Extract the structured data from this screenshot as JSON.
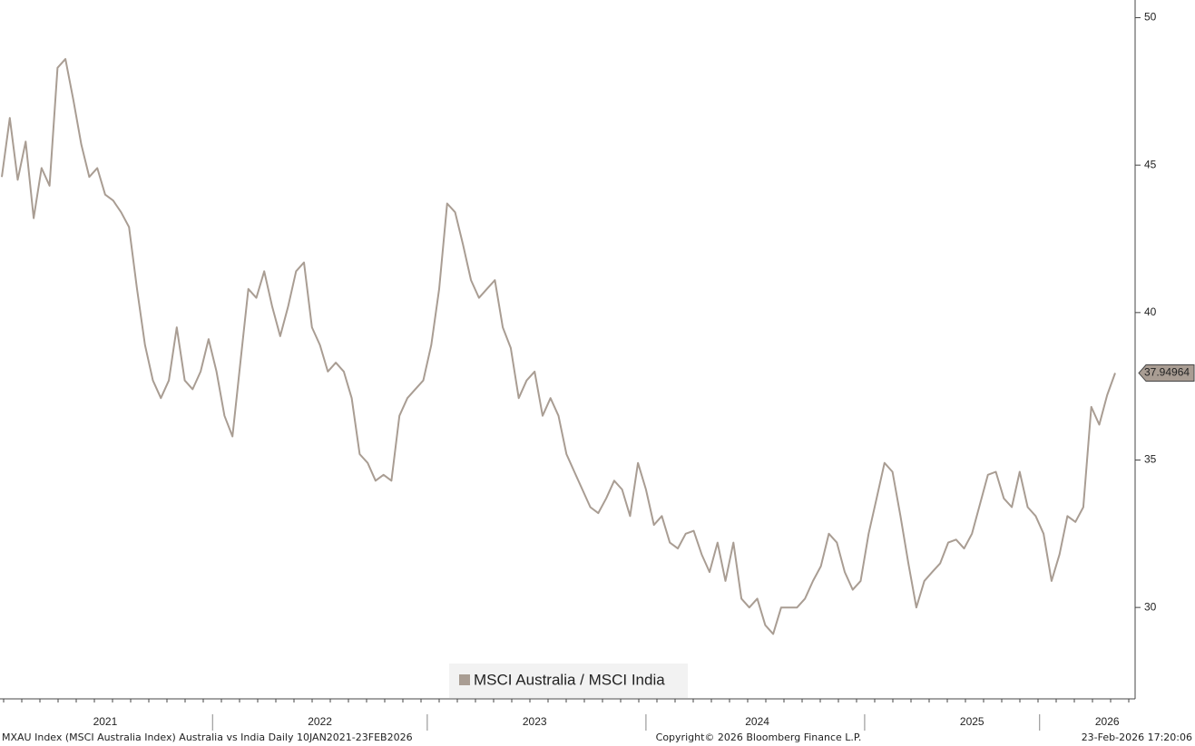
{
  "chart_data": {
    "type": "line",
    "legend": "MSCI Australia / MSCI India",
    "footer_left": "MXAU Index (MSCI Australia Index) Australia vs India Daily 10JAN2021-23FEB2026",
    "footer_center": "Copyright© 2026 Bloomberg Finance L.P.",
    "footer_right": "23-Feb-2026 17:20:06",
    "categories": [
      null,
      null,
      null,
      null,
      null,
      null,
      null,
      null,
      null,
      null,
      null,
      null,
      null,
      "2021",
      null,
      null,
      null,
      null,
      null,
      null,
      null,
      null,
      null,
      null,
      null,
      null,
      null,
      null,
      null,
      null,
      null,
      null,
      null,
      null,
      null,
      null,
      null,
      null,
      null,
      null,
      "2022",
      null,
      null,
      null,
      null,
      null,
      null,
      null,
      null,
      null,
      null,
      null,
      null,
      null,
      null,
      null,
      null,
      null,
      null,
      null,
      null,
      null,
      null,
      null,
      null,
      null,
      null,
      "2023",
      null,
      null,
      null,
      null,
      null,
      null,
      null,
      null,
      null,
      null,
      null,
      null,
      null,
      null,
      null,
      null,
      null,
      null,
      null,
      null,
      null,
      null,
      null,
      null,
      null,
      null,
      null,
      "2024",
      null,
      null,
      null,
      null,
      null,
      null,
      null,
      null,
      null,
      null,
      null,
      null,
      null,
      null,
      null,
      null,
      null,
      null,
      null,
      null,
      null,
      null,
      null,
      null,
      null,
      null,
      "2025",
      null,
      null,
      null,
      null,
      null,
      null,
      null,
      null,
      null,
      null,
      null,
      null,
      null,
      null,
      null,
      null,
      "2026",
      null
    ],
    "series": [
      {
        "name": "MSCI Australia / MSCI India",
        "color": "#a99d93",
        "values": [
          44.6,
          46.6,
          44.5,
          45.8,
          43.2,
          44.9,
          44.3,
          48.3,
          48.6,
          47.2,
          45.7,
          44.6,
          44.9,
          44.0,
          43.8,
          43.4,
          42.9,
          40.8,
          38.9,
          37.7,
          37.1,
          37.7,
          39.5,
          37.7,
          37.4,
          38.0,
          39.1,
          38.0,
          36.5,
          35.8,
          38.3,
          40.8,
          40.5,
          41.4,
          40.2,
          39.2,
          40.2,
          41.4,
          41.7,
          39.5,
          38.9,
          38.0,
          38.3,
          38.0,
          37.1,
          35.2,
          34.9,
          34.3,
          34.5,
          34.3,
          36.5,
          37.1,
          37.4,
          37.7,
          38.9,
          40.8,
          43.7,
          43.4,
          42.3,
          41.1,
          40.5,
          40.8,
          41.1,
          39.5,
          38.8,
          37.1,
          37.7,
          38.0,
          36.5,
          37.1,
          36.5,
          35.2,
          34.6,
          34.0,
          33.4,
          33.2,
          33.7,
          34.3,
          34.0,
          33.1,
          34.9,
          34.0,
          32.8,
          33.1,
          32.2,
          32.0,
          32.5,
          32.6,
          31.8,
          31.2,
          32.2,
          30.9,
          32.2,
          30.3,
          30.0,
          30.3,
          29.4,
          29.1,
          30.0,
          30.0,
          30.0,
          30.3,
          30.9,
          31.4,
          32.5,
          32.2,
          31.2,
          30.6,
          30.9,
          32.5,
          33.7,
          34.9,
          34.6,
          33.1,
          31.5,
          30.0,
          30.9,
          31.2,
          31.5,
          32.2,
          32.3,
          32.0,
          32.5,
          33.5,
          34.5,
          34.6,
          33.7,
          33.4,
          34.6,
          33.4,
          33.1,
          32.5,
          30.9,
          31.8,
          33.1,
          32.9,
          33.4,
          36.8,
          36.2,
          37.2,
          37.94964
        ]
      }
    ],
    "ylim": [
      26.9,
      50.6
    ],
    "yticks": [
      30,
      35,
      40,
      45,
      50
    ]
  }
}
